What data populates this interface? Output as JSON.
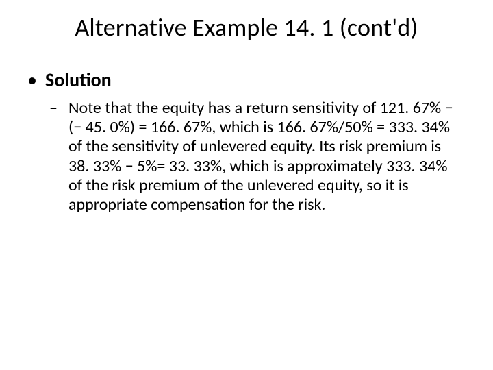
{
  "slide": {
    "title": "Alternative Example 14. 1 (cont'd)",
    "bullet1": {
      "label": "Solution",
      "sub1": "Note that the equity has a return sensitivity of 121. 67% − (− 45. 0%) = 166. 67%, which is 166. 67%/50% = 333. 34% of the sensitivity of unlevered equity. Its risk premium is 38. 33% − 5%= 33. 33%, which is approximately 333. 34% of the risk premium of the unlevered equity, so it is appropriate compensation for the risk."
    }
  },
  "style": {
    "background_color": "#ffffff",
    "text_color": "#000000",
    "title_fontsize_pt": 28,
    "body_fontsize_pt": 20,
    "sub_fontsize_pt": 18,
    "font_family": "Calibri"
  }
}
